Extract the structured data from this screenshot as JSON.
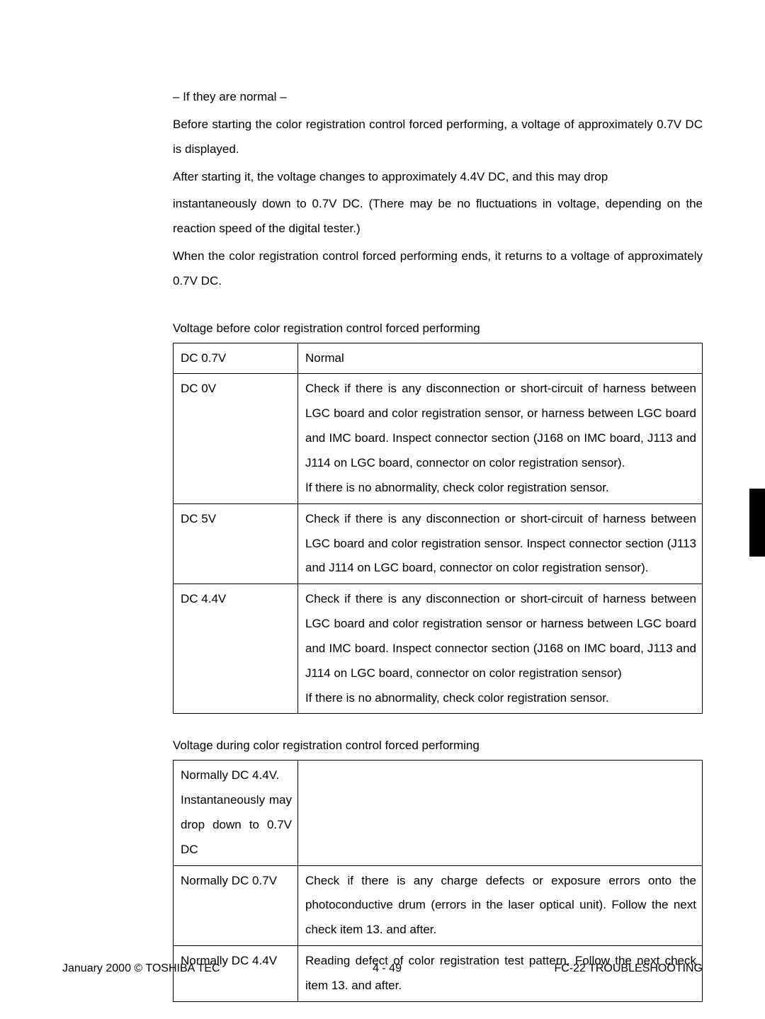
{
  "intro": {
    "l1": "– If they are normal –",
    "l2": "Before starting the color registration control forced performing, a voltage of approximately 0.7V DC is displayed.",
    "l3": "After starting it, the voltage changes to approximately 4.4V DC, and this may drop",
    "l4": "instantaneously down to 0.7V DC. (There may be no fluctuations in voltage, depending on the reaction speed of the digital tester.)",
    "l5": "When the color registration control forced performing ends, it returns to a voltage of approximately 0.7V DC."
  },
  "table1": {
    "caption": "Voltage before color registration control forced performing",
    "rows": [
      {
        "v": "DC  0.7V",
        "d": "Normal"
      },
      {
        "v": "DC  0V",
        "d": "Check if there is any disconnection or short-circuit of harness between LGC board and color registration sensor, or harness between LGC board and IMC board. Inspect connector section (J168 on IMC board, J113 and J114 on LGC board, connector on color registration sensor).\nIf there is no abnormality, check color registration sensor."
      },
      {
        "v": "DC  5V",
        "d": "Check if there is any disconnection or short-circuit of harness between LGC board and color registration sensor. Inspect connector section (J113 and J114 on LGC board, connector on color registration sensor)."
      },
      {
        "v": "DC  4.4V",
        "d": "Check if there is any disconnection or short-circuit of harness between LGC board and color registration sensor or harness between LGC board and IMC board. Inspect connector section (J168 on IMC board, J113 and J114 on LGC board, connector on color registration sensor)\nIf there is no abnormality, check color registration sensor."
      }
    ]
  },
  "table2": {
    "caption": "Voltage during color registration control forced performing",
    "rows": [
      {
        "v": "Normally DC 4.4V.\nInstantaneously may drop down to 0.7V DC",
        "d": ""
      },
      {
        "v": "Normally  DC 0.7V",
        "d": "Check if there is any charge defects or exposure errors onto the photoconductive drum (errors in the laser optical unit). Follow the next check item 13. and after."
      },
      {
        "v": "Normally  DC 4.4V",
        "d": "Reading defect of color registration test pattern. Follow the next check item 13. and after."
      }
    ]
  },
  "footer": {
    "left": "January 2000  ©  TOSHIBA TEC",
    "center": "4 - 49",
    "right": "FC-22   TROUBLESHOOTING"
  }
}
